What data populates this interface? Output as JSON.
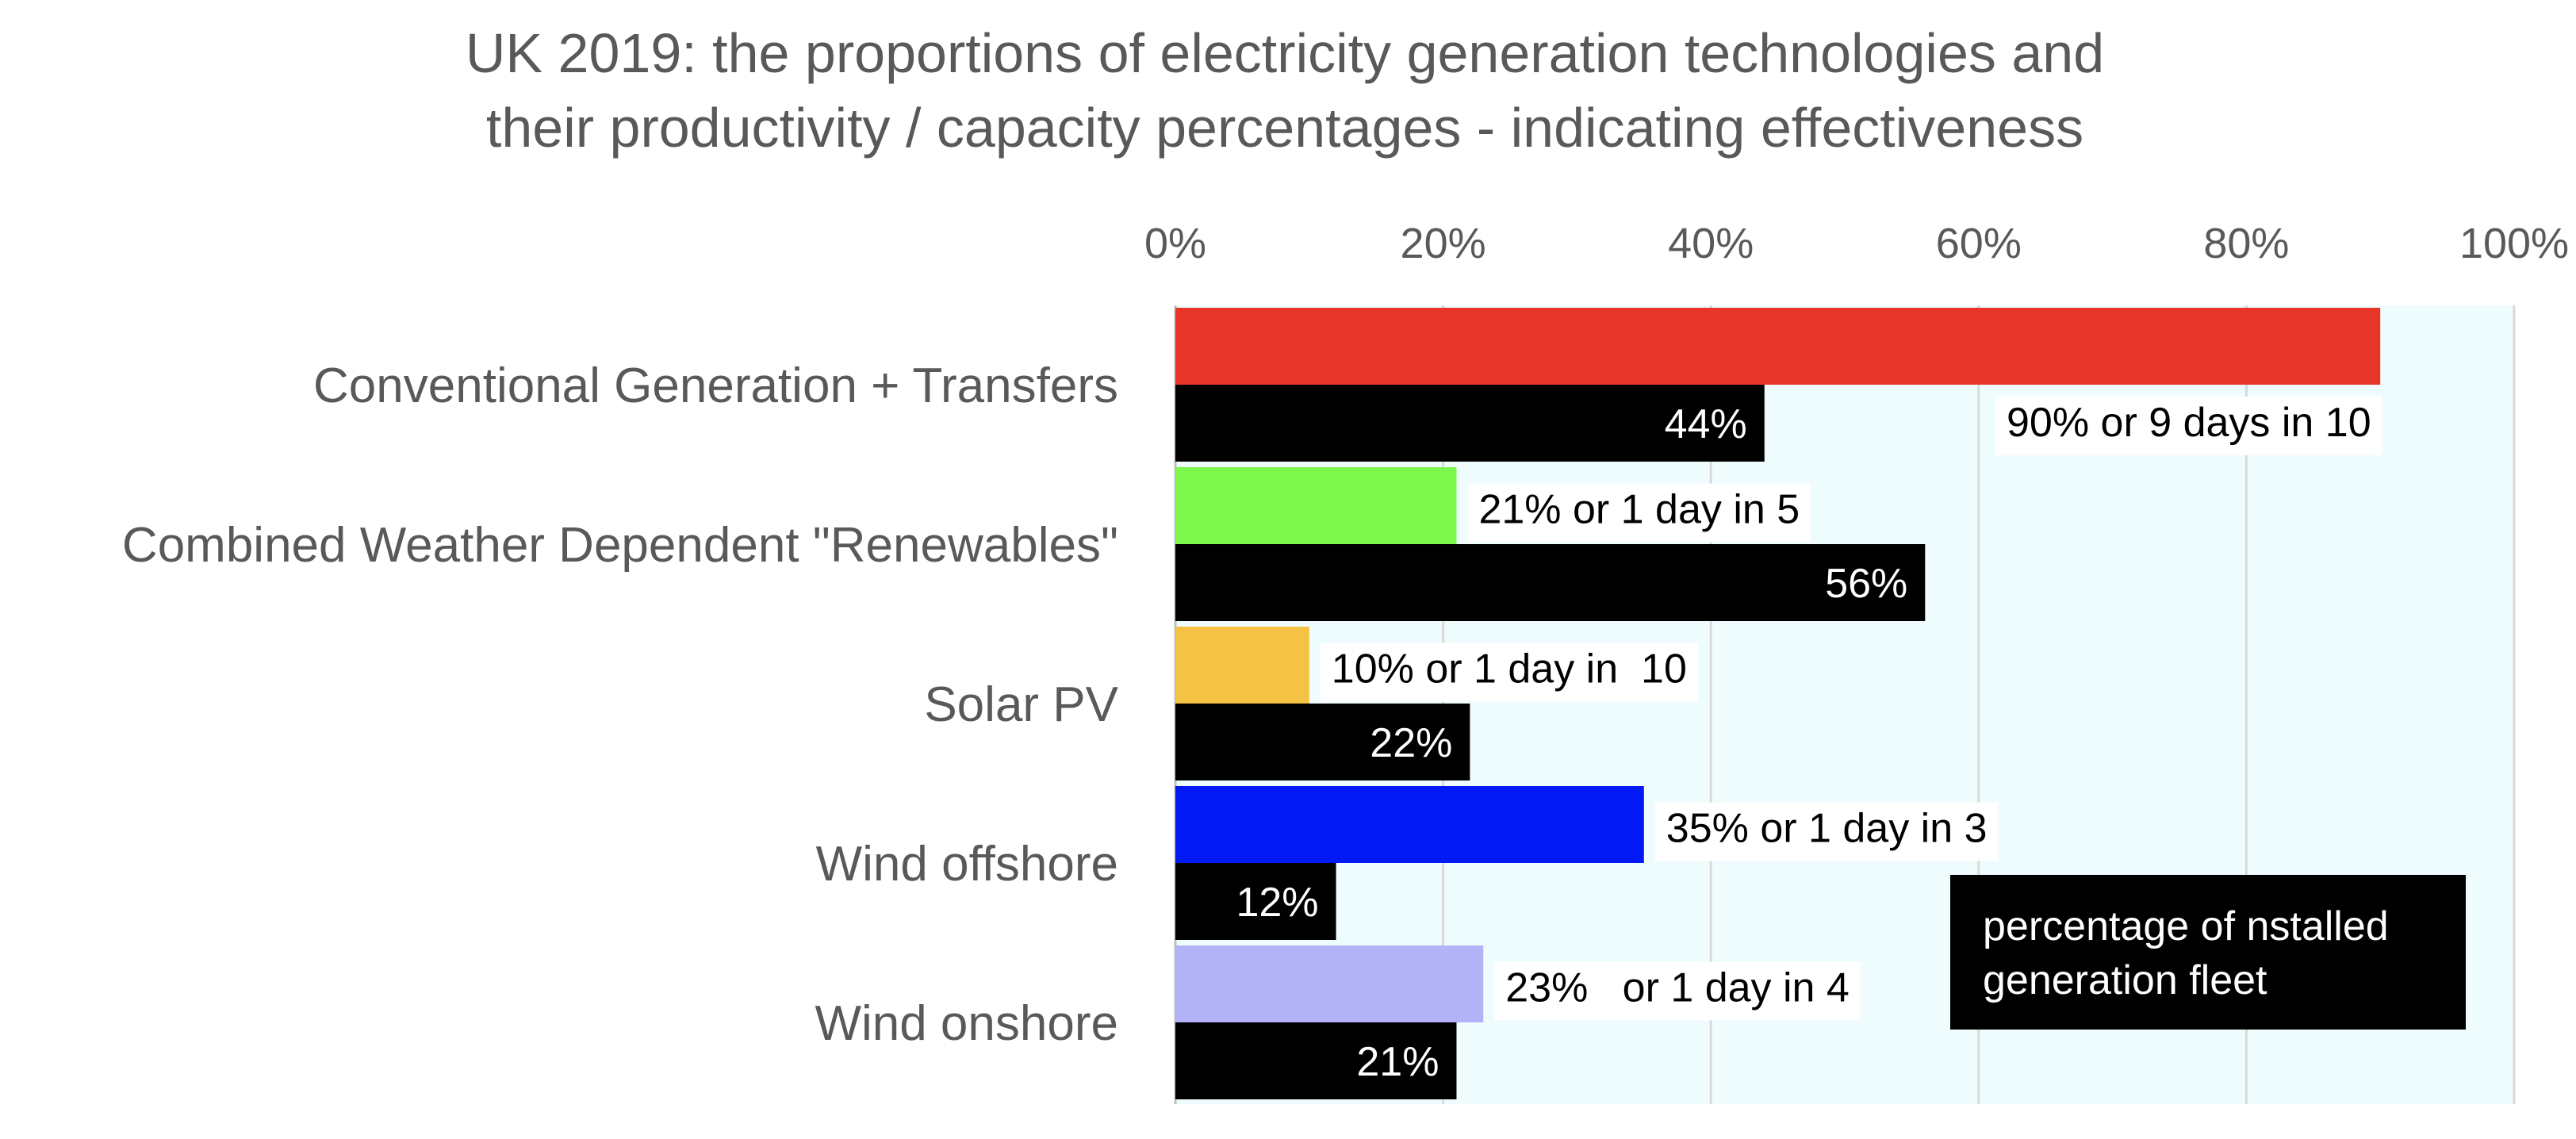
{
  "chart_data": {
    "type": "bar",
    "orientation": "horizontal",
    "title": "UK 2019:  the proportions of electricity generation technologies and their productivity / capacity percentages - indicating effectiveness",
    "title_lines": [
      "UK 2019:  the proportions of electricity generation technologies and",
      "their productivity / capacity percentages - indicating effectiveness"
    ],
    "categories": [
      "Conventional Generation + Transfers",
      "Combined Weather Dependent \"Renewables\"",
      "Solar PV",
      "Wind offshore",
      "Wind onshore"
    ],
    "series": [
      {
        "name": "productivity / capacity",
        "values": [
          90,
          21,
          10,
          35,
          23
        ],
        "colors": [
          "#e8352a",
          "#7cf74c",
          "#f4c244",
          "#0019f5",
          "#b3b3f7"
        ],
        "labels": [
          "90% or 9 days in 10",
          "21% or 1 day in 5",
          "10% or 1 day in  10",
          "35% or 1 day in 3",
          "23%   or 1 day in 4"
        ]
      },
      {
        "name": "percentage of nstalled generation fleet",
        "values": [
          44,
          56,
          22,
          12,
          21
        ],
        "colors": [
          "#000000"
        ],
        "labels": [
          "44%",
          "56%",
          "22%",
          "12%",
          "21%"
        ]
      }
    ],
    "xlim": [
      0,
      100
    ],
    "xticks": [
      "0%",
      "20%",
      "40%",
      "60%",
      "80%",
      "100%"
    ],
    "xaxis_position": "top",
    "grid": true,
    "plot_background": "#eefcfd",
    "legend": {
      "text_lines": [
        "percentage of nstalled",
        "generation fleet"
      ],
      "placement": "bottom-right"
    }
  }
}
